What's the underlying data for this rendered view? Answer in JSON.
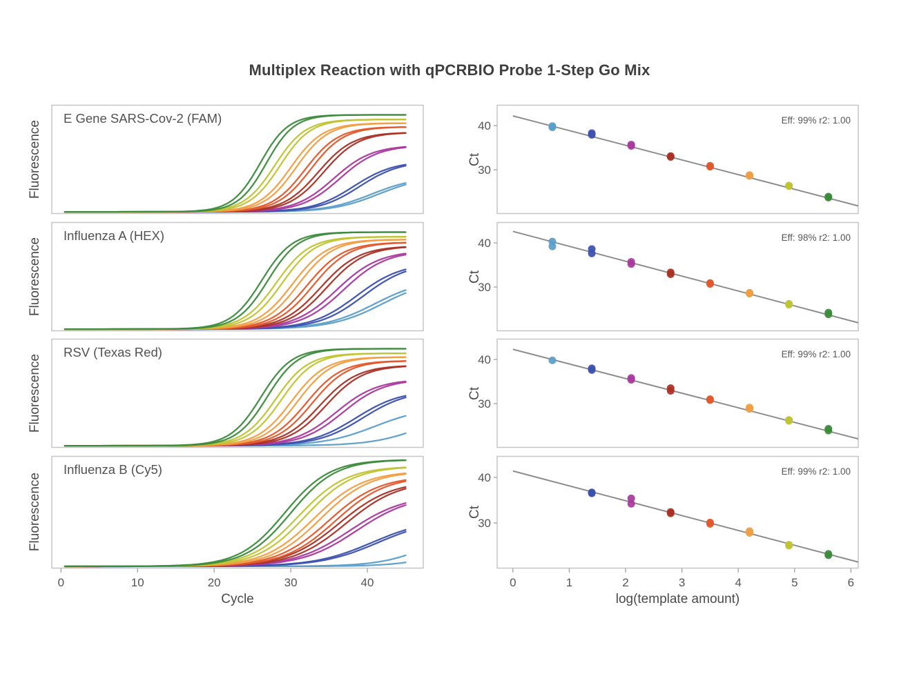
{
  "title": "Multiplex Reaction with qPCRBIO Probe 1-Step Go Mix",
  "panels": {
    "amplification_xlabel": "Cycle",
    "amplification_ylabel": "Fluorescence",
    "standard_xlabel": "log(template amount)",
    "standard_ylabel": "Ct"
  },
  "style": {
    "border": "#c6c6c6",
    "tick": "#999999",
    "text": "#4a4a4a",
    "fit_line": "#8c8c8c",
    "background": "#ffffff"
  },
  "dilution_colors": {
    "5.6": "#3d8b3d",
    "4.9": "#bfc433",
    "4.2": "#f09e43",
    "3.5": "#e2582c",
    "2.8": "#a93226",
    "2.1": "#a93a9e",
    "1.4": "#3c51ae",
    "0.7": "#5b9ec9"
  },
  "axes": {
    "amplification": {
      "xlim": [
        -1.2,
        47.3
      ],
      "ylim": [
        0,
        1.18
      ],
      "xticks": [
        0,
        10,
        20,
        30,
        40
      ],
      "baseline": 0.022
    },
    "standard": {
      "xlim": [
        -0.28,
        6.13
      ],
      "ylim": [
        20,
        44.7
      ],
      "xticks": [
        0,
        1,
        2,
        3,
        4,
        5,
        6
      ],
      "yticks": [
        30,
        40
      ]
    }
  },
  "chart_data": [
    {
      "target": "E Gene SARS-Cov-2 (FAM)",
      "amplification": {
        "type": "line",
        "xlabel": "Cycle",
        "ylabel": "Fluorescence",
        "dilutions": [
          {
            "log": 5.6,
            "midpoints": [
              26.0,
              26.8
            ],
            "plateau": 1.05,
            "k": 0.55
          },
          {
            "log": 4.9,
            "midpoints": [
              27.9,
              28.6
            ],
            "plateau": 1.0,
            "k": 0.5
          },
          {
            "log": 4.2,
            "midpoints": [
              30.0,
              30.7
            ],
            "plateau": 0.96,
            "k": 0.48
          },
          {
            "log": 3.5,
            "midpoints": [
              31.9,
              32.6
            ],
            "plateau": 0.92,
            "k": 0.46
          },
          {
            "log": 2.8,
            "midpoints": [
              33.6,
              34.3
            ],
            "plateau": 0.86,
            "k": 0.44
          },
          {
            "log": 2.1,
            "midpoints": [
              35.6,
              36.4
            ],
            "plateau": 0.72,
            "k": 0.4
          },
          {
            "log": 1.4,
            "midpoints": [
              38.2,
              39.0
            ],
            "plateau": 0.55,
            "k": 0.38
          },
          {
            "log": 0.7,
            "midpoints": [
              40.5,
              41.4
            ],
            "plateau": 0.38,
            "k": 0.34
          }
        ]
      },
      "standard": {
        "type": "scatter",
        "xlabel": "log(template amount)",
        "ylabel": "Ct",
        "annotation": "Eff: 99% r2: 1.00",
        "fit": {
          "x": [
            0,
            6.13
          ],
          "ct": [
            42.2,
            21.8
          ]
        },
        "points": [
          {
            "x": 0.7,
            "ct": 39.9
          },
          {
            "x": 0.7,
            "ct": 39.6
          },
          {
            "x": 1.4,
            "ct": 38.3
          },
          {
            "x": 1.4,
            "ct": 37.9
          },
          {
            "x": 2.1,
            "ct": 35.7
          },
          {
            "x": 2.1,
            "ct": 35.4
          },
          {
            "x": 2.8,
            "ct": 33.1
          },
          {
            "x": 2.8,
            "ct": 32.9
          },
          {
            "x": 3.5,
            "ct": 30.9
          },
          {
            "x": 3.5,
            "ct": 30.7
          },
          {
            "x": 4.2,
            "ct": 28.8
          },
          {
            "x": 4.2,
            "ct": 28.6
          },
          {
            "x": 4.9,
            "ct": 26.4
          },
          {
            "x": 4.9,
            "ct": 26.3
          },
          {
            "x": 5.6,
            "ct": 23.9
          },
          {
            "x": 5.6,
            "ct": 23.7
          }
        ]
      }
    },
    {
      "target": "Influenza A (HEX)",
      "amplification": {
        "type": "line",
        "xlabel": "Cycle",
        "ylabel": "Fluorescence",
        "dilutions": [
          {
            "log": 5.6,
            "midpoints": [
              26.2,
              27.0
            ],
            "plateau": 1.05,
            "k": 0.5
          },
          {
            "log": 4.9,
            "midpoints": [
              28.1,
              28.9
            ],
            "plateau": 1.0,
            "k": 0.46
          },
          {
            "log": 4.2,
            "midpoints": [
              30.2,
              31.0
            ],
            "plateau": 0.97,
            "k": 0.44
          },
          {
            "log": 3.5,
            "midpoints": [
              32.1,
              32.9
            ],
            "plateau": 0.94,
            "k": 0.42
          },
          {
            "log": 2.8,
            "midpoints": [
              33.9,
              34.7
            ],
            "plateau": 0.9,
            "k": 0.4
          },
          {
            "log": 2.1,
            "midpoints": [
              36.0,
              36.9
            ],
            "plateau": 0.85,
            "k": 0.36
          },
          {
            "log": 1.4,
            "midpoints": [
              38.6,
              39.5
            ],
            "plateau": 0.72,
            "k": 0.34
          },
          {
            "log": 0.7,
            "midpoints": [
              41.0,
              42.0
            ],
            "plateau": 0.55,
            "k": 0.3
          }
        ]
      },
      "standard": {
        "type": "scatter",
        "xlabel": "log(template amount)",
        "ylabel": "Ct",
        "annotation": "Eff: 98% r2: 1.00",
        "fit": {
          "x": [
            0,
            6.13
          ],
          "ct": [
            42.6,
            21.9
          ]
        },
        "points": [
          {
            "x": 0.7,
            "ct": 40.3
          },
          {
            "x": 0.7,
            "ct": 39.2
          },
          {
            "x": 1.4,
            "ct": 38.6
          },
          {
            "x": 1.4,
            "ct": 37.6
          },
          {
            "x": 2.1,
            "ct": 35.7
          },
          {
            "x": 2.1,
            "ct": 35.2
          },
          {
            "x": 2.8,
            "ct": 33.3
          },
          {
            "x": 2.8,
            "ct": 32.9
          },
          {
            "x": 3.5,
            "ct": 30.9
          },
          {
            "x": 3.5,
            "ct": 30.7
          },
          {
            "x": 4.2,
            "ct": 28.7
          },
          {
            "x": 4.2,
            "ct": 28.5
          },
          {
            "x": 4.9,
            "ct": 26.2
          },
          {
            "x": 4.9,
            "ct": 26.0
          },
          {
            "x": 5.6,
            "ct": 24.2
          },
          {
            "x": 5.6,
            "ct": 23.8
          }
        ]
      }
    },
    {
      "target": "RSV (Texas Red)",
      "amplification": {
        "type": "line",
        "xlabel": "Cycle",
        "ylabel": "Fluorescence",
        "dilutions": [
          {
            "log": 5.6,
            "midpoints": [
              26.1,
              26.9
            ],
            "plateau": 1.05,
            "k": 0.5
          },
          {
            "log": 4.9,
            "midpoints": [
              28.0,
              28.8
            ],
            "plateau": 1.0,
            "k": 0.47
          },
          {
            "log": 4.2,
            "midpoints": [
              30.1,
              30.9
            ],
            "plateau": 0.96,
            "k": 0.45
          },
          {
            "log": 3.5,
            "midpoints": [
              32.0,
              32.8
            ],
            "plateau": 0.92,
            "k": 0.43
          },
          {
            "log": 2.8,
            "midpoints": [
              33.8,
              34.6
            ],
            "plateau": 0.87,
            "k": 0.41
          },
          {
            "log": 2.1,
            "midpoints": [
              35.9,
              36.8
            ],
            "plateau": 0.72,
            "k": 0.37
          },
          {
            "log": 1.4,
            "midpoints": [
              38.5,
              39.4
            ],
            "plateau": 0.6,
            "k": 0.34
          },
          {
            "log": 0.7,
            "midpoints": [
              41.0,
              47.5
            ],
            "plateau": 0.42,
            "k": 0.3
          }
        ]
      },
      "standard": {
        "type": "scatter",
        "xlabel": "log(template amount)",
        "ylabel": "Ct",
        "annotation": "Eff: 99% r2: 1.00",
        "fit": {
          "x": [
            0,
            6.13
          ],
          "ct": [
            42.3,
            22.0
          ]
        },
        "points": [
          {
            "x": 0.7,
            "ct": 39.8
          },
          {
            "x": 1.4,
            "ct": 38.0
          },
          {
            "x": 1.4,
            "ct": 37.6
          },
          {
            "x": 2.1,
            "ct": 35.8
          },
          {
            "x": 2.1,
            "ct": 35.4
          },
          {
            "x": 2.8,
            "ct": 33.5
          },
          {
            "x": 2.8,
            "ct": 32.9
          },
          {
            "x": 3.5,
            "ct": 31.0
          },
          {
            "x": 3.5,
            "ct": 30.8
          },
          {
            "x": 4.2,
            "ct": 29.1
          },
          {
            "x": 4.2,
            "ct": 28.8
          },
          {
            "x": 4.9,
            "ct": 26.3
          },
          {
            "x": 4.9,
            "ct": 26.1
          },
          {
            "x": 5.6,
            "ct": 24.3
          },
          {
            "x": 5.6,
            "ct": 23.9
          }
        ]
      }
    },
    {
      "target": "Influenza B (Cy5)",
      "amplification": {
        "type": "line",
        "xlabel": "Cycle",
        "ylabel": "Fluorescence",
        "dilutions": [
          {
            "log": 5.6,
            "midpoints": [
              29.2,
              30.0
            ],
            "plateau": 1.12,
            "k": 0.34
          },
          {
            "log": 4.9,
            "midpoints": [
              31.0,
              31.9
            ],
            "plateau": 1.05,
            "k": 0.32
          },
          {
            "log": 4.2,
            "midpoints": [
              33.0,
              33.9
            ],
            "plateau": 1.0,
            "k": 0.31
          },
          {
            "log": 3.5,
            "midpoints": [
              34.9,
              35.8
            ],
            "plateau": 0.95,
            "k": 0.3
          },
          {
            "log": 2.8,
            "midpoints": [
              36.3,
              37.2
            ],
            "plateau": 0.9,
            "k": 0.29
          },
          {
            "log": 2.1,
            "midpoints": [
              37.7,
              38.6
            ],
            "plateau": 0.75,
            "k": 0.28
          },
          {
            "log": 1.4,
            "midpoints": [
              40.6,
              41.4
            ],
            "plateau": 0.5,
            "k": 0.27
          },
          {
            "log": 0.7,
            "midpoints": [
              49.0,
              53.0
            ],
            "plateau": 0.5,
            "k": 0.3
          }
        ]
      },
      "standard": {
        "type": "scatter",
        "xlabel": "log(template amount)",
        "ylabel": "Ct",
        "annotation": "Eff: 99% r2: 1.00",
        "fit": {
          "x": [
            0,
            6.13
          ],
          "ct": [
            41.4,
            21.4
          ]
        },
        "points": [
          {
            "x": 1.4,
            "ct": 36.7
          },
          {
            "x": 1.4,
            "ct": 36.5
          },
          {
            "x": 2.1,
            "ct": 35.4
          },
          {
            "x": 2.1,
            "ct": 34.2
          },
          {
            "x": 2.8,
            "ct": 32.4
          },
          {
            "x": 2.8,
            "ct": 32.1
          },
          {
            "x": 3.5,
            "ct": 30.1
          },
          {
            "x": 3.5,
            "ct": 29.8
          },
          {
            "x": 4.2,
            "ct": 28.2
          },
          {
            "x": 4.2,
            "ct": 27.8
          },
          {
            "x": 4.9,
            "ct": 25.2
          },
          {
            "x": 4.9,
            "ct": 25.0
          },
          {
            "x": 5.6,
            "ct": 23.2
          },
          {
            "x": 5.6,
            "ct": 22.9
          }
        ]
      }
    }
  ]
}
